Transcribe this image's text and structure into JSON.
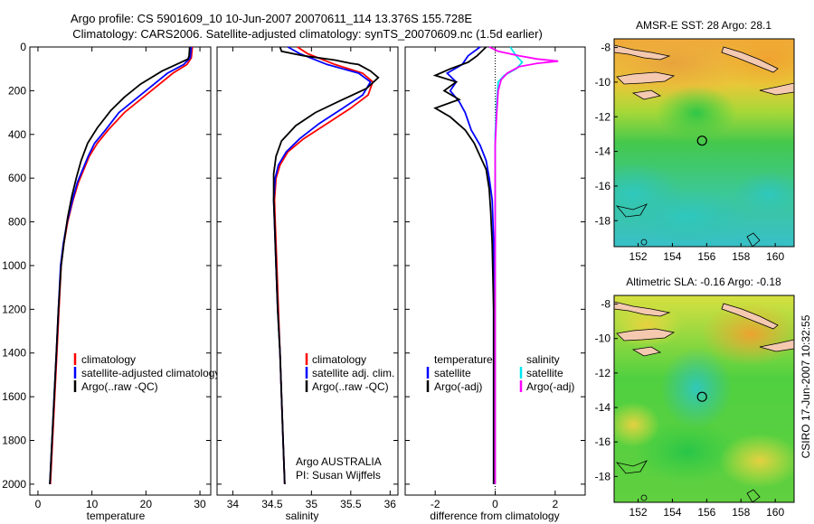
{
  "header": {
    "title_line1": "Argo profile: CS 5901609_10 10-Jun-2007 20070611_114 13.376S 155.728E",
    "title_line2": "Climatology: CARS2006. Satellite-adjusted climatology: synTS_20070609.nc (1.5d earlier)"
  },
  "side_label": "CSIRO 17-Jun-2007 10:32:55",
  "colors": {
    "climatology": "#ff0000",
    "satellite": "#0000ff",
    "argo": "#000000",
    "sat_diff": "#00e5ee",
    "argo_diff": "#ff00ff"
  },
  "chart_data": [
    {
      "type": "line",
      "xlabel": "temperature",
      "ylabel": "",
      "xlim": [
        -1.5,
        32
      ],
      "ylim": [
        2050,
        0
      ],
      "xticks": [
        "0",
        "10",
        "20",
        "30"
      ],
      "yticks": [
        "0",
        "200",
        "400",
        "600",
        "800",
        "1000",
        "1200",
        "1400",
        "1600",
        "1800",
        "2000"
      ],
      "legend": [
        "climatology",
        "satellite-adjusted climatology",
        "Argo(..raw -QC)"
      ],
      "series": [
        {
          "name": "climatology",
          "color": "#ff0000",
          "points": [
            [
              28.6,
              0
            ],
            [
              28.4,
              50
            ],
            [
              27.6,
              80
            ],
            [
              25,
              120
            ],
            [
              22,
              180
            ],
            [
              19,
              240
            ],
            [
              16,
              300
            ],
            [
              13,
              380
            ],
            [
              11,
              440
            ],
            [
              9.5,
              500
            ],
            [
              8.5,
              560
            ],
            [
              7.5,
              620
            ],
            [
              6.5,
              700
            ],
            [
              5.5,
              800
            ],
            [
              4.8,
              900
            ],
            [
              4.3,
              1000
            ],
            [
              3.9,
              1200
            ],
            [
              3.5,
              1400
            ],
            [
              3.1,
              1600
            ],
            [
              2.7,
              1800
            ],
            [
              2.3,
              2000
            ]
          ]
        },
        {
          "name": "satellite-adjusted climatology",
          "color": "#0000ff",
          "points": [
            [
              28.4,
              0
            ],
            [
              28.2,
              50
            ],
            [
              27,
              80
            ],
            [
              24,
              120
            ],
            [
              21,
              180
            ],
            [
              18,
              240
            ],
            [
              15,
              300
            ],
            [
              12.5,
              380
            ],
            [
              10.5,
              440
            ],
            [
              9.3,
              500
            ],
            [
              8.3,
              560
            ],
            [
              7.3,
              620
            ],
            [
              6.4,
              700
            ],
            [
              5.4,
              800
            ],
            [
              4.7,
              900
            ],
            [
              4.2,
              1000
            ],
            [
              3.8,
              1200
            ],
            [
              3.4,
              1400
            ],
            [
              3,
              1600
            ],
            [
              2.6,
              1800
            ],
            [
              2.2,
              2000
            ]
          ]
        },
        {
          "name": "Argo(..raw -QC)",
          "color": "#000000",
          "points": [
            [
              28.1,
              0
            ],
            [
              28,
              40
            ],
            [
              27.8,
              55
            ],
            [
              26.5,
              70
            ],
            [
              23,
              110
            ],
            [
              19,
              170
            ],
            [
              16,
              230
            ],
            [
              13.5,
              290
            ],
            [
              11,
              370
            ],
            [
              9.2,
              440
            ],
            [
              8,
              520
            ],
            [
              7.1,
              600
            ],
            [
              6.3,
              680
            ],
            [
              5.5,
              780
            ],
            [
              4.8,
              900
            ],
            [
              4.3,
              1000
            ],
            [
              3.8,
              1200
            ],
            [
              3.4,
              1400
            ],
            [
              3,
              1600
            ],
            [
              2.6,
              1800
            ],
            [
              2.2,
              2000
            ]
          ]
        }
      ]
    },
    {
      "type": "line",
      "xlabel": "salinity",
      "xlim": [
        33.8,
        36.1
      ],
      "ylim": [
        2050,
        0
      ],
      "xticks": [
        "34",
        "34.5",
        "35",
        "35.5",
        "36"
      ],
      "legend": [
        "climatology",
        "satellite adj. clim.",
        "Argo(..raw -QC)"
      ],
      "annotation": [
        "Argo AUSTRALIA",
        "PI: Susan Wijffels"
      ],
      "series": [
        {
          "name": "climatology",
          "color": "#ff0000",
          "points": [
            [
              34.82,
              0
            ],
            [
              34.95,
              30
            ],
            [
              35.3,
              80
            ],
            [
              35.65,
              120
            ],
            [
              35.78,
              160
            ],
            [
              35.72,
              220
            ],
            [
              35.5,
              280
            ],
            [
              35.2,
              350
            ],
            [
              34.9,
              420
            ],
            [
              34.7,
              480
            ],
            [
              34.6,
              540
            ],
            [
              34.55,
              600
            ],
            [
              34.53,
              700
            ],
            [
              34.54,
              800
            ],
            [
              34.56,
              1000
            ],
            [
              34.58,
              1200
            ],
            [
              34.6,
              1400
            ],
            [
              34.62,
              1600
            ],
            [
              34.64,
              1800
            ],
            [
              34.66,
              2000
            ]
          ]
        },
        {
          "name": "satellite adj. clim.",
          "color": "#0000ff",
          "points": [
            [
              34.7,
              0
            ],
            [
              34.85,
              30
            ],
            [
              35.2,
              80
            ],
            [
              35.6,
              120
            ],
            [
              35.75,
              160
            ],
            [
              35.65,
              220
            ],
            [
              35.4,
              280
            ],
            [
              35.1,
              350
            ],
            [
              34.85,
              420
            ],
            [
              34.68,
              480
            ],
            [
              34.58,
              540
            ],
            [
              34.54,
              600
            ],
            [
              34.52,
              700
            ],
            [
              34.53,
              800
            ],
            [
              34.55,
              1000
            ],
            [
              34.57,
              1200
            ],
            [
              34.6,
              1400
            ],
            [
              34.62,
              1600
            ],
            [
              34.64,
              1800
            ],
            [
              34.66,
              2000
            ]
          ]
        },
        {
          "name": "Argo(..raw -QC)",
          "color": "#000000",
          "points": [
            [
              34.6,
              0
            ],
            [
              34.62,
              20
            ],
            [
              34.9,
              40
            ],
            [
              35.3,
              60
            ],
            [
              35.5,
              75
            ],
            [
              35.6,
              80
            ],
            [
              35.75,
              110
            ],
            [
              35.85,
              140
            ],
            [
              35.7,
              190
            ],
            [
              35.4,
              240
            ],
            [
              35.05,
              300
            ],
            [
              34.8,
              360
            ],
            [
              34.62,
              430
            ],
            [
              34.55,
              500
            ],
            [
              34.52,
              580
            ],
            [
              34.52,
              700
            ],
            [
              34.53,
              800
            ],
            [
              34.55,
              1000
            ],
            [
              34.57,
              1200
            ],
            [
              34.6,
              1400
            ],
            [
              34.62,
              1600
            ],
            [
              34.64,
              1800
            ],
            [
              34.66,
              2000
            ]
          ]
        }
      ]
    },
    {
      "type": "line",
      "xlabel": "difference from climatology",
      "xlim": [
        -3,
        3
      ],
      "ylim": [
        2050,
        0
      ],
      "xticks": [
        "-2",
        "0",
        "2"
      ],
      "legend_temperature": [
        "temperature",
        "satellite",
        "Argo(-adj)"
      ],
      "legend_salinity": [
        "salinity",
        "satellite",
        "Argo(-adj)"
      ],
      "series": [
        {
          "name": "temperature satellite",
          "color": "#0000ff",
          "points": [
            [
              -0.5,
              0
            ],
            [
              -0.9,
              40
            ],
            [
              -1.1,
              80
            ],
            [
              -1.6,
              120
            ],
            [
              -1.3,
              160
            ],
            [
              -1.5,
              200
            ],
            [
              -1.2,
              250
            ],
            [
              -1,
              300
            ],
            [
              -0.8,
              380
            ],
            [
              -0.5,
              450
            ],
            [
              -0.3,
              520
            ],
            [
              -0.2,
              600
            ],
            [
              -0.1,
              700
            ],
            [
              -0.05,
              900
            ],
            [
              -0.05,
              1200
            ],
            [
              -0.05,
              1600
            ],
            [
              -0.05,
              2000
            ]
          ]
        },
        {
          "name": "temperature Argo(-adj)",
          "color": "#000000",
          "points": [
            [
              -0.3,
              0
            ],
            [
              -0.6,
              40
            ],
            [
              -0.9,
              70
            ],
            [
              -1.5,
              100
            ],
            [
              -2,
              130
            ],
            [
              -1.3,
              160
            ],
            [
              -1.7,
              200
            ],
            [
              -1.2,
              240
            ],
            [
              -2,
              280
            ],
            [
              -1.5,
              320
            ],
            [
              -1,
              380
            ],
            [
              -0.7,
              440
            ],
            [
              -0.5,
              500
            ],
            [
              -0.3,
              560
            ],
            [
              -0.2,
              650
            ],
            [
              -0.15,
              750
            ],
            [
              -0.1,
              900
            ],
            [
              -0.05,
              1200
            ],
            [
              -0.05,
              1600
            ],
            [
              -0.05,
              2000
            ]
          ]
        },
        {
          "name": "salinity satellite",
          "color": "#00e5ee",
          "points": [
            [
              0.5,
              0
            ],
            [
              0.7,
              40
            ],
            [
              0.9,
              70
            ],
            [
              0.7,
              100
            ],
            [
              0.3,
              130
            ],
            [
              0.1,
              160
            ],
            [
              0.05,
              250
            ],
            [
              0,
              400
            ],
            [
              0,
              600
            ],
            [
              0,
              800
            ],
            [
              0,
              1000
            ],
            [
              0,
              1500
            ],
            [
              0,
              2000
            ]
          ]
        },
        {
          "name": "salinity Argo(-adj)",
          "color": "#ff00ff",
          "points": [
            [
              -0.2,
              0
            ],
            [
              0.1,
              20
            ],
            [
              0.8,
              40
            ],
            [
              1.4,
              55
            ],
            [
              2.1,
              65
            ],
            [
              1.4,
              75
            ],
            [
              0.8,
              90
            ],
            [
              0.4,
              120
            ],
            [
              0.2,
              150
            ],
            [
              0.1,
              200
            ],
            [
              0.05,
              300
            ],
            [
              0,
              450
            ],
            [
              0,
              600
            ],
            [
              0,
              800
            ],
            [
              0,
              1000
            ],
            [
              0,
              1500
            ],
            [
              0,
              2000
            ]
          ]
        }
      ]
    },
    {
      "type": "heatmap",
      "title": "AMSR-E SST: 28 Argo: 28.1",
      "xlim": [
        150.6,
        161.1
      ],
      "ylim": [
        -19.5,
        -7.5
      ],
      "xticks": [
        "152",
        "154",
        "156",
        "158",
        "160"
      ],
      "yticks": [
        "-8",
        "-10",
        "-12",
        "-14",
        "-16",
        "-18"
      ],
      "marker": {
        "lon": 155.73,
        "lat": -13.38
      }
    },
    {
      "type": "heatmap",
      "title": "Altimetric SLA: -0.16 Argo: -0.18",
      "xlim": [
        150.6,
        161.1
      ],
      "ylim": [
        -19.5,
        -7.5
      ],
      "xticks": [
        "152",
        "154",
        "156",
        "158",
        "160"
      ],
      "yticks": [
        "-8",
        "-10",
        "-12",
        "-14",
        "-16",
        "-18"
      ],
      "marker": {
        "lon": 155.73,
        "lat": -13.38
      }
    }
  ]
}
